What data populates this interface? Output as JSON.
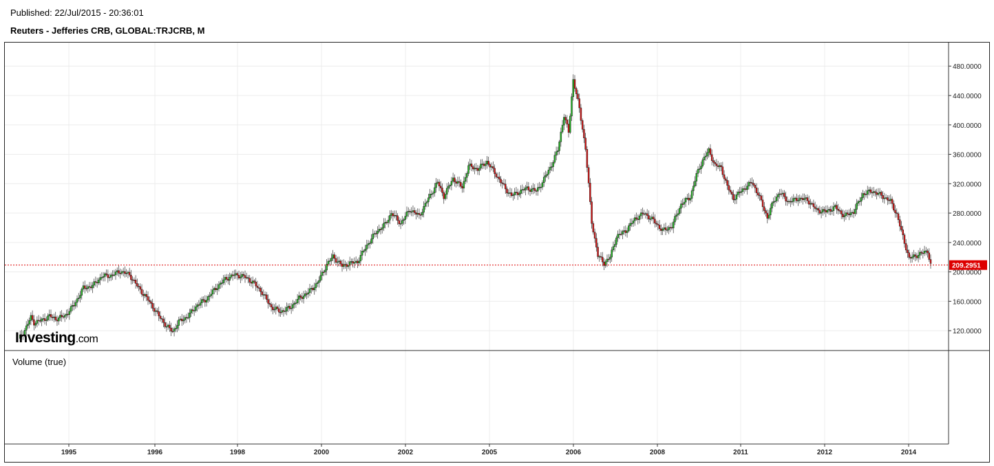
{
  "header": {
    "published": "Published: 22/Jul/2015 - 20:36:01",
    "title": "Reuters - Jefferies CRB, GLOBAL:TRJCRB, M"
  },
  "volume_pane": {
    "label": "Volume (true)"
  },
  "logo": {
    "name": "Investing",
    "suffix": ".com"
  },
  "colors": {
    "up": "#22bb22",
    "down": "#dd1111",
    "price_line": "#dd0000",
    "grid": "#ececec"
  },
  "chart_data": {
    "type": "candlestick",
    "series_name": "Reuters - Jefferies CRB, GLOBAL:TRJCRB, M",
    "interval": "M",
    "last_price": "209.2951",
    "ylim": [
      93,
      512
    ],
    "y_ticks": [
      "120.0000",
      "160.0000",
      "200.0000",
      "240.0000",
      "280.0000",
      "320.0000",
      "360.0000",
      "400.0000",
      "440.0000",
      "480.0000"
    ],
    "x_ticks": [
      "1995",
      "1996",
      "1998",
      "2000",
      "2002",
      "2005",
      "2006",
      "2008",
      "2011",
      "2012",
      "2014"
    ],
    "grid": true,
    "anchors": [
      [
        0,
        108
      ],
      [
        4,
        121
      ],
      [
        8,
        138
      ],
      [
        10,
        131
      ],
      [
        16,
        135
      ],
      [
        20,
        140
      ],
      [
        24,
        136
      ],
      [
        30,
        140
      ],
      [
        36,
        155
      ],
      [
        42,
        178
      ],
      [
        48,
        181
      ],
      [
        54,
        194
      ],
      [
        60,
        195
      ],
      [
        66,
        201
      ],
      [
        72,
        196
      ],
      [
        78,
        178
      ],
      [
        84,
        162
      ],
      [
        90,
        143
      ],
      [
        96,
        126
      ],
      [
        100,
        119
      ],
      [
        104,
        132
      ],
      [
        110,
        140
      ],
      [
        116,
        155
      ],
      [
        122,
        163
      ],
      [
        128,
        178
      ],
      [
        134,
        190
      ],
      [
        140,
        196
      ],
      [
        146,
        194
      ],
      [
        152,
        186
      ],
      [
        158,
        172
      ],
      [
        164,
        152
      ],
      [
        170,
        146
      ],
      [
        176,
        151
      ],
      [
        182,
        164
      ],
      [
        188,
        172
      ],
      [
        194,
        185
      ],
      [
        200,
        210
      ],
      [
        204,
        221
      ],
      [
        210,
        208
      ],
      [
        214,
        211
      ],
      [
        220,
        214
      ],
      [
        226,
        236
      ],
      [
        232,
        254
      ],
      [
        238,
        265
      ],
      [
        242,
        280
      ],
      [
        248,
        266
      ],
      [
        254,
        285
      ],
      [
        260,
        276
      ],
      [
        266,
        300
      ],
      [
        272,
        322
      ],
      [
        276,
        303
      ],
      [
        282,
        327
      ],
      [
        288,
        315
      ],
      [
        292,
        344
      ],
      [
        298,
        340
      ],
      [
        304,
        350
      ],
      [
        310,
        332
      ],
      [
        316,
        313
      ],
      [
        320,
        304
      ],
      [
        326,
        310
      ],
      [
        330,
        314
      ],
      [
        336,
        310
      ],
      [
        340,
        322
      ],
      [
        346,
        346
      ],
      [
        350,
        366
      ],
      [
        354,
        413
      ],
      [
        357,
        390
      ],
      [
        360,
        462
      ],
      [
        364,
        422
      ],
      [
        368,
        368
      ],
      [
        372,
        268
      ],
      [
        376,
        222
      ],
      [
        380,
        212
      ],
      [
        384,
        220
      ],
      [
        388,
        248
      ],
      [
        394,
        256
      ],
      [
        400,
        272
      ],
      [
        406,
        280
      ],
      [
        412,
        270
      ],
      [
        418,
        256
      ],
      [
        424,
        262
      ],
      [
        430,
        292
      ],
      [
        436,
        302
      ],
      [
        440,
        332
      ],
      [
        444,
        352
      ],
      [
        448,
        365
      ],
      [
        452,
        345
      ],
      [
        456,
        342
      ],
      [
        460,
        316
      ],
      [
        464,
        300
      ],
      [
        470,
        312
      ],
      [
        476,
        322
      ],
      [
        480,
        306
      ],
      [
        486,
        274
      ],
      [
        490,
        296
      ],
      [
        494,
        308
      ],
      [
        500,
        295
      ],
      [
        506,
        300
      ],
      [
        512,
        298
      ],
      [
        518,
        284
      ],
      [
        524,
        282
      ],
      [
        530,
        288
      ],
      [
        536,
        276
      ],
      [
        542,
        282
      ],
      [
        548,
        306
      ],
      [
        554,
        310
      ],
      [
        560,
        304
      ],
      [
        566,
        296
      ],
      [
        570,
        278
      ],
      [
        574,
        248
      ],
      [
        578,
        218
      ],
      [
        582,
        222
      ],
      [
        586,
        225
      ],
      [
        590,
        229
      ],
      [
        592,
        209
      ]
    ]
  }
}
